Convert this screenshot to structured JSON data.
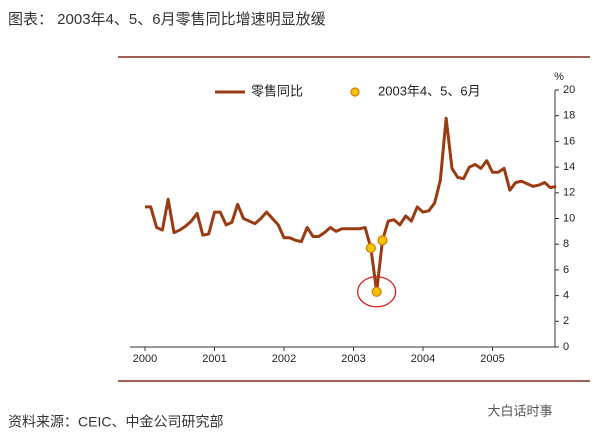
{
  "chart_data": {
    "type": "line",
    "title": "图表：  2003年4、5、6月零售同比增速明显放缓",
    "source": "资料来源：CEIC、中金公司研究部",
    "watermark": "大白话时事",
    "y_unit": "%",
    "x": [
      2000,
      2000.083,
      2000.167,
      2000.25,
      2000.333,
      2000.417,
      2000.5,
      2000.583,
      2000.667,
      2000.75,
      2000.833,
      2000.917,
      2001,
      2001.083,
      2001.167,
      2001.25,
      2001.333,
      2001.417,
      2001.5,
      2001.583,
      2001.667,
      2001.75,
      2001.833,
      2001.917,
      2002,
      2002.083,
      2002.167,
      2002.25,
      2002.333,
      2002.417,
      2002.5,
      2002.583,
      2002.667,
      2002.75,
      2002.833,
      2002.917,
      2003,
      2003.083,
      2003.167,
      2003.25,
      2003.333,
      2003.417,
      2003.5,
      2003.583,
      2003.667,
      2003.75,
      2003.833,
      2003.917,
      2004,
      2004.083,
      2004.167,
      2004.25,
      2004.333,
      2004.417,
      2004.5,
      2004.583,
      2004.667,
      2004.75,
      2004.833,
      2004.917,
      2005,
      2005.083,
      2005.167,
      2005.25,
      2005.333,
      2005.417,
      2005.5,
      2005.583,
      2005.667,
      2005.75,
      2005.833,
      2005.917
    ],
    "series": [
      {
        "name": "零售同比",
        "color": "#9a3b12",
        "values": [
          10.9,
          10.9,
          9.3,
          9.1,
          11.5,
          8.9,
          9.1,
          9.4,
          9.8,
          10.4,
          8.7,
          8.8,
          10.5,
          10.5,
          9.5,
          9.7,
          11.1,
          10.0,
          9.8,
          9.6,
          10.0,
          10.5,
          10.0,
          9.5,
          8.5,
          8.5,
          8.3,
          8.2,
          9.3,
          8.6,
          8.6,
          8.9,
          9.3,
          9.0,
          9.2,
          9.2,
          9.2,
          9.2,
          9.3,
          7.7,
          4.3,
          8.3,
          9.8,
          9.9,
          9.5,
          10.2,
          9.8,
          10.9,
          10.5,
          10.6,
          11.2,
          13.0,
          17.8,
          13.9,
          13.2,
          13.1,
          14.0,
          14.2,
          13.9,
          14.5,
          13.6,
          13.6,
          13.9,
          12.2,
          12.8,
          12.9,
          12.7,
          12.5,
          12.6,
          12.8,
          12.4,
          12.5
        ]
      },
      {
        "name": "2003年4、5、6月",
        "type": "scatter",
        "color": "#f5c400",
        "edge": "#d9780a",
        "x": [
          2003.25,
          2003.333,
          2003.417
        ],
        "values": [
          7.7,
          4.3,
          8.3
        ]
      }
    ],
    "xlim": [
      2000,
      2006
    ],
    "xticks": [
      2000,
      2001,
      2002,
      2003,
      2004,
      2005
    ],
    "ylim": [
      0,
      20
    ],
    "yticks": [
      0,
      2,
      4,
      6,
      8,
      10,
      12,
      14,
      16,
      18,
      20
    ]
  }
}
